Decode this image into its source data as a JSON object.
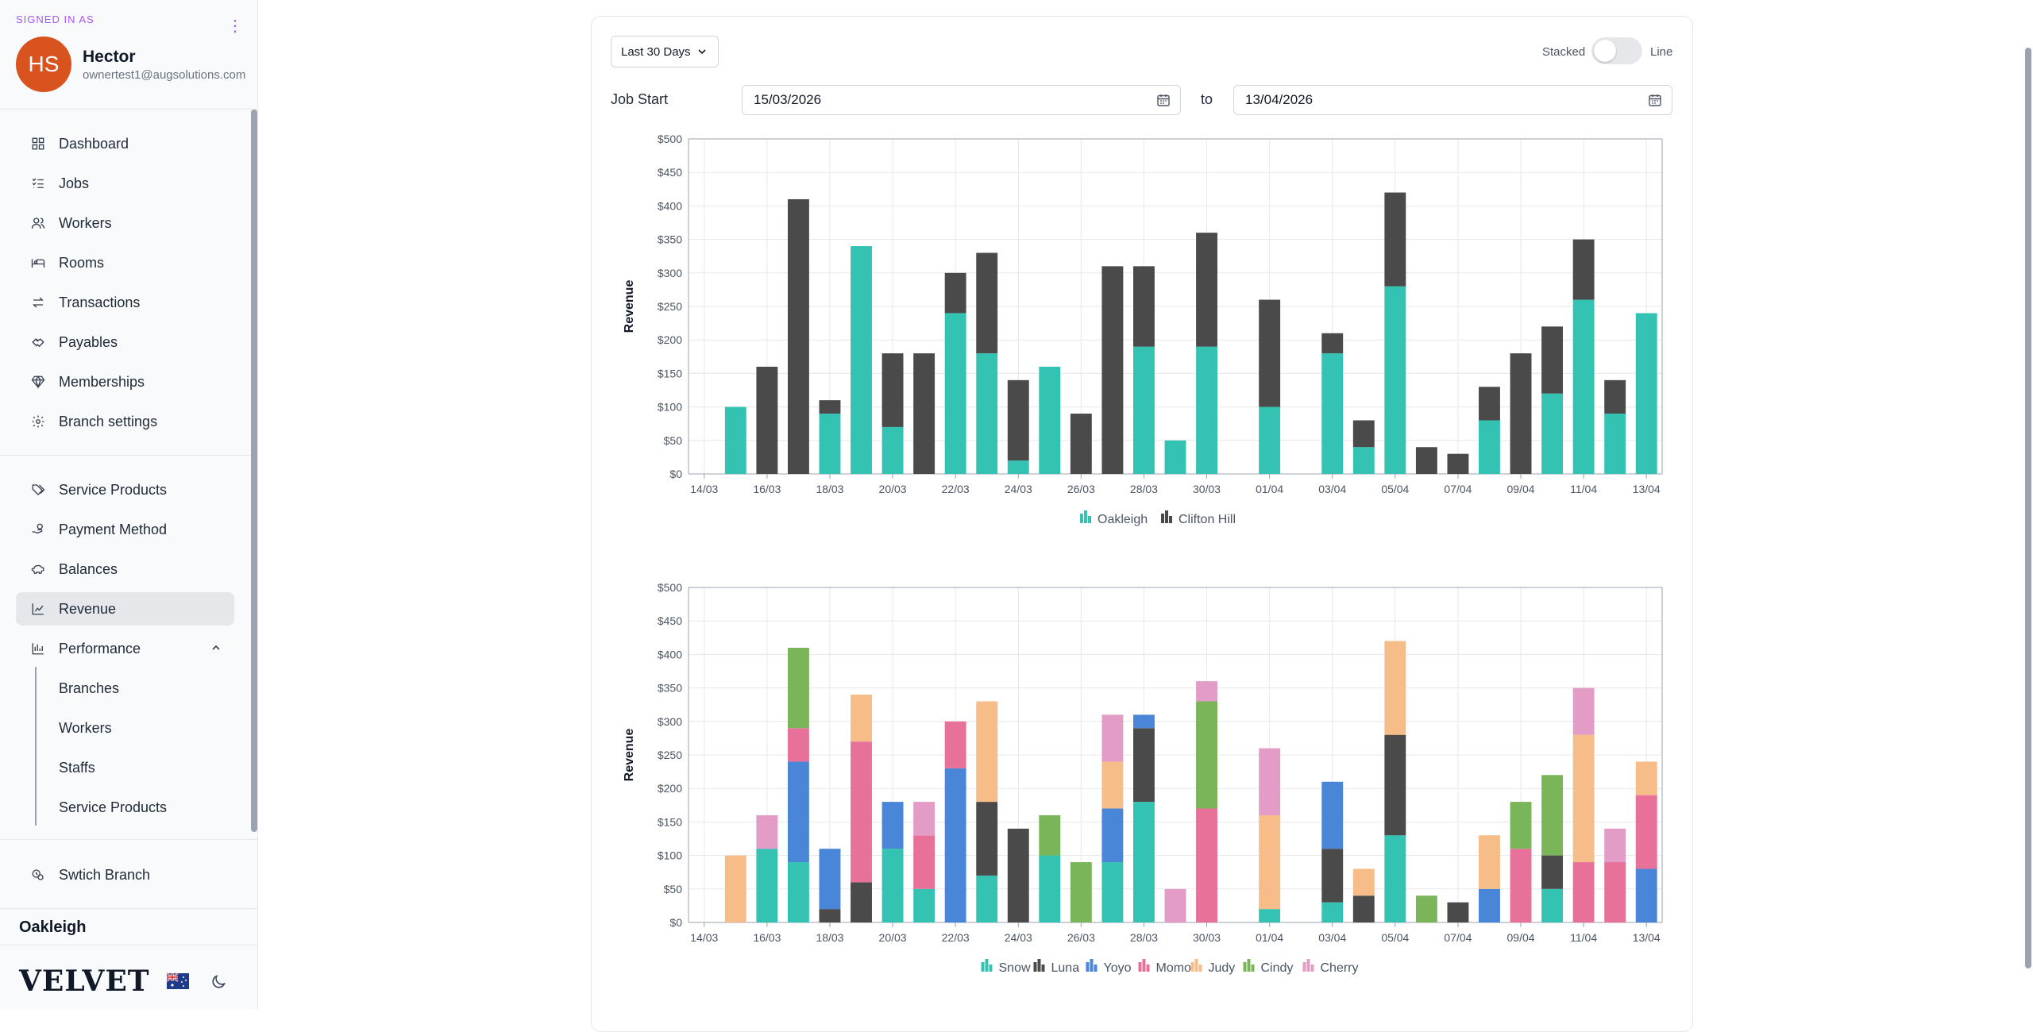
{
  "sidebar": {
    "signed_in_label": "SIGNED IN AS",
    "user": {
      "initials": "HS",
      "name": "Hector",
      "email": "ownertest1@augsolutions.com"
    },
    "nav_main": [
      {
        "label": "Dashboard",
        "icon": "grid-icon"
      },
      {
        "label": "Jobs",
        "icon": "list-check-icon"
      },
      {
        "label": "Workers",
        "icon": "users-icon"
      },
      {
        "label": "Rooms",
        "icon": "bed-icon"
      },
      {
        "label": "Transactions",
        "icon": "arrows-swap-icon"
      },
      {
        "label": "Payables",
        "icon": "handshake-icon"
      },
      {
        "label": "Memberships",
        "icon": "gem-icon"
      },
      {
        "label": "Branch settings",
        "icon": "gear-icon"
      }
    ],
    "nav_secondary": [
      {
        "label": "Service Products",
        "icon": "tags-icon"
      },
      {
        "label": "Payment Method",
        "icon": "hand-coins-icon"
      },
      {
        "label": "Balances",
        "icon": "piggy-bank-icon"
      },
      {
        "label": "Revenue",
        "icon": "chart-line-icon",
        "active": true
      },
      {
        "label": "Performance",
        "icon": "bar-chart-icon",
        "expanded": true
      }
    ],
    "performance_sub": [
      "Branches",
      "Workers",
      "Staffs",
      "Service Products"
    ],
    "switch_branch": "Swtich Branch",
    "branch_name": "Oakleigh",
    "logo": "VELVET"
  },
  "filters": {
    "range": "Last 30 Days",
    "toggle_left": "Stacked",
    "toggle_right": "Line",
    "job_start_label": "Job Start",
    "from": "15/03/2026",
    "to_label": "to",
    "to": "13/04/2026"
  },
  "colors": {
    "Oakleigh": "#34c3b3",
    "Clifton Hill": "#4a4a4a",
    "Snow": "#34c3b3",
    "Luna": "#4a4a4a",
    "Yoyo": "#4a86d8",
    "Momo": "#e8719a",
    "Judy": "#f7bd88",
    "Cindy": "#7ab55a",
    "Cherry": "#e29cc6"
  },
  "chart_data": [
    {
      "type": "bar",
      "stacked": true,
      "ylabel": "Revenue",
      "ylim": [
        0,
        500
      ],
      "yticks": [
        "$0",
        "$50",
        "$100",
        "$150",
        "$200",
        "$250",
        "$300",
        "$350",
        "$400",
        "$450",
        "$500"
      ],
      "categories": [
        "14/03",
        "15/03",
        "16/03",
        "17/03",
        "18/03",
        "19/03",
        "20/03",
        "21/03",
        "22/03",
        "23/03",
        "24/03",
        "25/03",
        "26/03",
        "27/03",
        "28/03",
        "29/03",
        "30/03",
        "31/03",
        "01/04",
        "02/04",
        "03/04",
        "04/04",
        "05/04",
        "06/04",
        "07/04",
        "08/04",
        "09/04",
        "10/04",
        "11/04",
        "12/04",
        "13/04"
      ],
      "xtick_labels": [
        "14/03",
        "16/03",
        "18/03",
        "20/03",
        "22/03",
        "24/03",
        "26/03",
        "28/03",
        "30/03",
        "01/04",
        "03/04",
        "05/04",
        "07/04",
        "09/04",
        "11/04",
        "13/04"
      ],
      "legend": "bottom",
      "series": [
        {
          "name": "Oakleigh",
          "values": [
            null,
            100,
            0,
            0,
            90,
            340,
            70,
            0,
            240,
            180,
            20,
            160,
            0,
            0,
            190,
            50,
            190,
            null,
            100,
            null,
            180,
            40,
            280,
            0,
            0,
            80,
            0,
            120,
            260,
            90,
            240
          ]
        },
        {
          "name": "Clifton Hill",
          "values": [
            null,
            0,
            160,
            410,
            20,
            0,
            110,
            180,
            60,
            150,
            120,
            0,
            90,
            310,
            120,
            0,
            170,
            null,
            160,
            null,
            30,
            40,
            140,
            40,
            30,
            50,
            180,
            100,
            90,
            50,
            0
          ]
        }
      ]
    },
    {
      "type": "bar",
      "stacked": true,
      "ylabel": "Revenue",
      "ylim": [
        0,
        500
      ],
      "yticks": [
        "$0",
        "$50",
        "$100",
        "$150",
        "$200",
        "$250",
        "$300",
        "$350",
        "$400",
        "$450",
        "$500"
      ],
      "categories": [
        "14/03",
        "15/03",
        "16/03",
        "17/03",
        "18/03",
        "19/03",
        "20/03",
        "21/03",
        "22/03",
        "23/03",
        "24/03",
        "25/03",
        "26/03",
        "27/03",
        "28/03",
        "29/03",
        "30/03",
        "31/03",
        "01/04",
        "02/04",
        "03/04",
        "04/04",
        "05/04",
        "06/04",
        "07/04",
        "08/04",
        "09/04",
        "10/04",
        "11/04",
        "12/04",
        "13/04"
      ],
      "xtick_labels": [
        "14/03",
        "16/03",
        "18/03",
        "20/03",
        "22/03",
        "24/03",
        "26/03",
        "28/03",
        "30/03",
        "01/04",
        "03/04",
        "05/04",
        "07/04",
        "09/04",
        "11/04",
        "13/04"
      ],
      "legend": "bottom",
      "series": [
        {
          "name": "Snow",
          "values": [
            null,
            0,
            110,
            90,
            0,
            0,
            110,
            50,
            0,
            70,
            0,
            100,
            0,
            90,
            180,
            0,
            0,
            null,
            20,
            null,
            30,
            0,
            130,
            0,
            0,
            0,
            0,
            50,
            0,
            0,
            0
          ]
        },
        {
          "name": "Luna",
          "values": [
            null,
            0,
            0,
            0,
            20,
            60,
            0,
            0,
            0,
            110,
            140,
            0,
            0,
            0,
            110,
            0,
            0,
            null,
            0,
            null,
            80,
            40,
            150,
            0,
            30,
            0,
            0,
            50,
            0,
            0,
            0
          ]
        },
        {
          "name": "Yoyo",
          "values": [
            null,
            0,
            0,
            150,
            90,
            0,
            70,
            0,
            230,
            0,
            0,
            0,
            0,
            80,
            20,
            0,
            0,
            null,
            0,
            null,
            100,
            0,
            0,
            0,
            0,
            50,
            0,
            0,
            0,
            0,
            80
          ]
        },
        {
          "name": "Momo",
          "values": [
            null,
            0,
            0,
            50,
            0,
            210,
            0,
            80,
            70,
            0,
            0,
            0,
            0,
            0,
            0,
            0,
            170,
            null,
            0,
            null,
            0,
            0,
            0,
            0,
            0,
            0,
            110,
            0,
            90,
            90,
            110
          ]
        },
        {
          "name": "Judy",
          "values": [
            null,
            100,
            0,
            0,
            0,
            70,
            0,
            0,
            0,
            150,
            0,
            0,
            0,
            70,
            0,
            0,
            0,
            null,
            140,
            null,
            0,
            40,
            140,
            0,
            0,
            80,
            0,
            0,
            190,
            0,
            50
          ]
        },
        {
          "name": "Cindy",
          "values": [
            null,
            0,
            0,
            120,
            0,
            0,
            0,
            0,
            0,
            0,
            0,
            60,
            90,
            0,
            0,
            0,
            160,
            null,
            0,
            null,
            0,
            0,
            0,
            40,
            0,
            0,
            70,
            120,
            0,
            0,
            0
          ]
        },
        {
          "name": "Cherry",
          "values": [
            null,
            0,
            50,
            0,
            0,
            0,
            0,
            50,
            0,
            0,
            0,
            0,
            0,
            70,
            0,
            50,
            30,
            null,
            100,
            null,
            0,
            0,
            0,
            0,
            0,
            0,
            0,
            0,
            70,
            50,
            0
          ]
        }
      ]
    }
  ]
}
